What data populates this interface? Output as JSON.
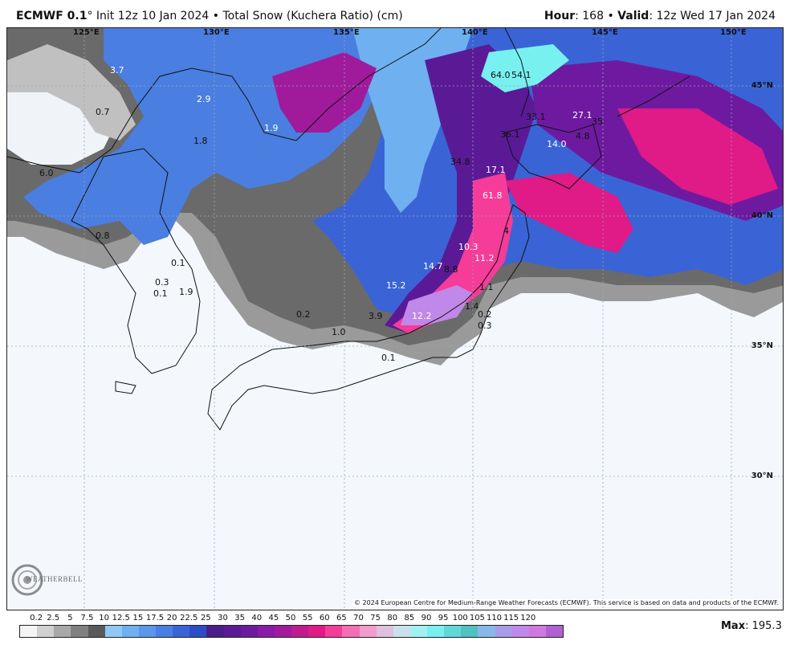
{
  "header": {
    "model": "ECMWF 0.1",
    "deg": "°",
    "init": "Init 12z 10 Jan 2024",
    "bullet": "•",
    "product": "Total Snow (Kuchera Ratio) (cm)",
    "hour_label": "Hour",
    "hour_value": ": 168",
    "valid_label": "Valid",
    "valid_value": ": 12z Wed 17 Jan 2024"
  },
  "map": {
    "lon_labels": [
      "125°E",
      "130°E",
      "135°E",
      "140°E",
      "145°E",
      "150°E"
    ],
    "lat_labels": [
      "45°N",
      "40°N",
      "35°N",
      "30°N"
    ],
    "values": [
      "3.7",
      "2.9",
      "0.7",
      "1.8",
      "6.0",
      "1.9",
      "0.8",
      "0.1",
      "0.3",
      "0.1",
      "1.9",
      "0.2",
      "1.0",
      "3.9",
      "12.2",
      "15.2",
      "14.7",
      "8.8",
      "10.3",
      "11.2",
      "1.1",
      "1.4",
      "0.2",
      "0.3",
      "0.1",
      "34.8",
      "17.1",
      "61.8",
      "4",
      "64.0",
      "54.1",
      "33.1",
      "27.1",
      "35",
      "36.1",
      "14.0",
      "4.8"
    ],
    "copyright": "© 2024 European Centre for Medium-Range Weather Forecasts (ECMWF). This service is based on data and products of the ECMWF.",
    "logo_text": "WEATHERBELL"
  },
  "legend": {
    "labels": [
      "0.2",
      "2.5",
      "5",
      "7.5",
      "10",
      "12.5",
      "15",
      "17.5",
      "20",
      "22.5",
      "25",
      "30",
      "35",
      "40",
      "45",
      "50",
      "55",
      "60",
      "65",
      "70",
      "75",
      "80",
      "85",
      "90",
      "95",
      "100",
      "105",
      "110",
      "115",
      "120"
    ],
    "colors": [
      "#f4f4f4",
      "#d0d0d0",
      "#a8a8a8",
      "#808080",
      "#5a5a5a",
      "#8ec8f4",
      "#6fb0f0",
      "#5a96ea",
      "#4a7ee0",
      "#3a64d6",
      "#2d4dc8",
      "#4a1d8c",
      "#5a1a96",
      "#6e1aa0",
      "#8a1aa8",
      "#a01a9c",
      "#c01a90",
      "#e01a86",
      "#f43c98",
      "#f46eb4",
      "#f09ccc",
      "#e0bede",
      "#c8e0ee",
      "#a0f0f4",
      "#78f0f0",
      "#60d8d8",
      "#50c0c0",
      "#88b8e8",
      "#a89ce8",
      "#c088e8",
      "#d078e0",
      "#b060d0"
    ],
    "max_label": "Max",
    "max_value": ": 195.3"
  }
}
